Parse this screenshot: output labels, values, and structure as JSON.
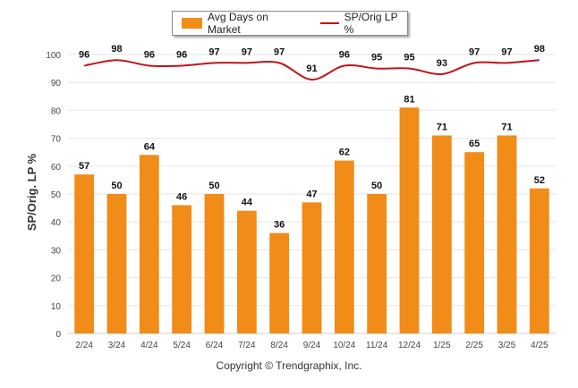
{
  "chart_data": {
    "type": "bar",
    "categories": [
      "2/24",
      "3/24",
      "4/24",
      "5/24",
      "6/24",
      "7/24",
      "8/24",
      "9/24",
      "10/24",
      "11/24",
      "12/24",
      "1/25",
      "2/25",
      "3/25",
      "4/25"
    ],
    "series": [
      {
        "name": "Avg Days on Market",
        "type": "bar",
        "color": "#f08c17",
        "values": [
          57,
          50,
          64,
          46,
          50,
          44,
          36,
          47,
          62,
          50,
          81,
          71,
          65,
          71,
          52
        ]
      },
      {
        "name": "SP/Orig LP %",
        "type": "line",
        "color": "#c0141c",
        "values": [
          96,
          98,
          96,
          96,
          97,
          97,
          97,
          91,
          96,
          95,
          95,
          93,
          97,
          97,
          98
        ]
      }
    ],
    "ylabel": "SP/Orig. LP %",
    "ylim": [
      0,
      100
    ],
    "yticks": [
      0,
      10,
      20,
      30,
      40,
      50,
      60,
      70,
      80,
      90,
      100
    ],
    "grid": true,
    "legend_position": "top-center"
  },
  "footer": {
    "copyright": "Copyright © Trendgraphix, Inc."
  }
}
